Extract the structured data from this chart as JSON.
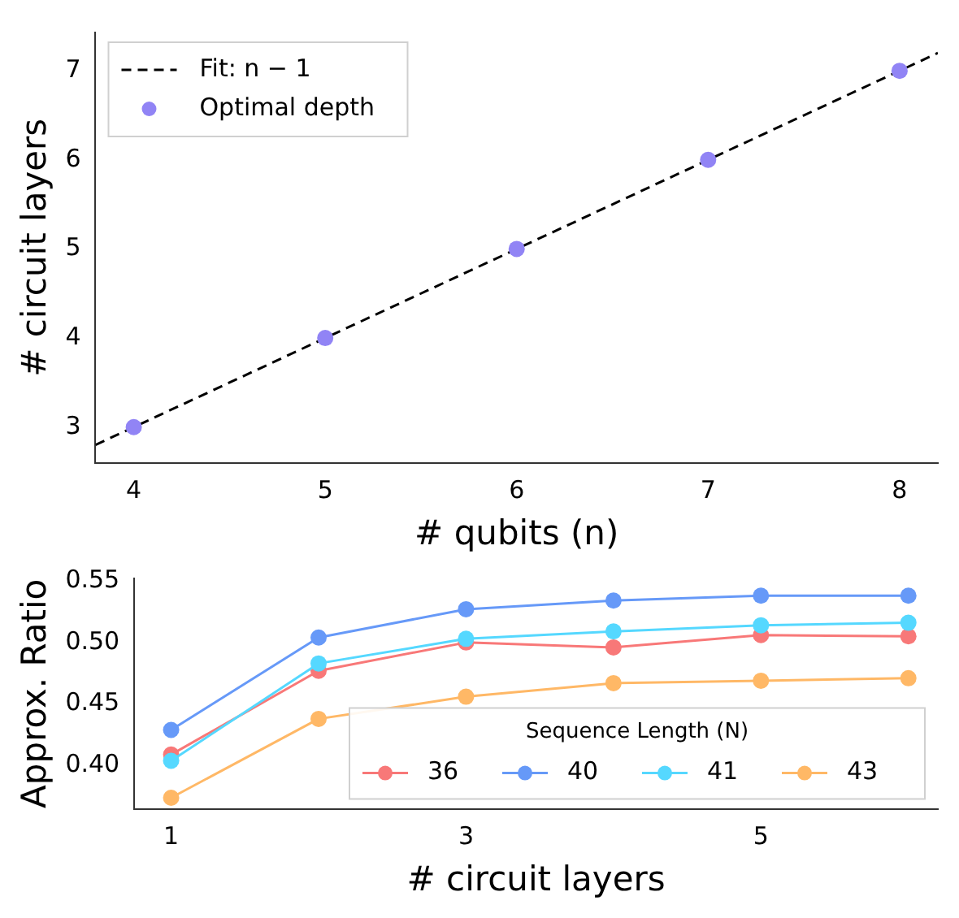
{
  "chart_data": [
    {
      "type": "scatter",
      "xlabel": "# qubits (n)",
      "ylabel": "# circuit layers",
      "xlim": [
        3.8,
        8.2
      ],
      "ylim": [
        2.6,
        7.43
      ],
      "xticks": [
        4,
        5,
        6,
        7,
        8
      ],
      "yticks": [
        3,
        4,
        5,
        6,
        7
      ],
      "grid": false,
      "legend": "top left",
      "series": [
        {
          "name": "Fit: n − 1",
          "type": "line",
          "color": "#000000",
          "x": [
            3.8,
            8.2
          ],
          "values": [
            2.8,
            7.2
          ],
          "line_style": "dashed",
          "marker": "none"
        },
        {
          "name": "Optimal depth",
          "type": "scatter",
          "color": "#9184f5",
          "x": [
            4,
            5,
            6,
            7,
            8
          ],
          "values": [
            3,
            4,
            5,
            6,
            7
          ],
          "marker": "circle"
        }
      ]
    },
    {
      "type": "line",
      "xlabel": "# circuit layers",
      "ylabel": "Approx. Ratio",
      "legend_title": "Sequence Length (N)",
      "xlim": [
        0.75,
        6.2
      ],
      "ylim": [
        0.365,
        0.552
      ],
      "xticks": [
        1,
        3,
        5
      ],
      "yticks": [
        {
          "value": 0.4,
          "label": "0.40"
        },
        {
          "value": 0.45,
          "label": "0.45"
        },
        {
          "value": 0.5,
          "label": "0.50"
        },
        {
          "value": 0.55,
          "label": "0.55"
        }
      ],
      "grid": false,
      "legend": "bottom right",
      "marker": "circle",
      "line_style": "solid",
      "x": [
        1,
        2,
        3,
        4,
        5,
        6
      ],
      "series": [
        {
          "name": "36",
          "color": "#f87878",
          "values": [
            0.409,
            0.477,
            0.5,
            0.496,
            0.506,
            0.505
          ]
        },
        {
          "name": "40",
          "color": "#6699f8",
          "values": [
            0.429,
            0.504,
            0.527,
            0.534,
            0.538,
            0.538
          ]
        },
        {
          "name": "41",
          "color": "#55d8ff",
          "values": [
            0.404,
            0.483,
            0.503,
            0.509,
            0.514,
            0.516
          ]
        },
        {
          "name": "43",
          "color": "#ffb866",
          "values": [
            0.374,
            0.438,
            0.456,
            0.467,
            0.469,
            0.471
          ]
        }
      ]
    }
  ]
}
